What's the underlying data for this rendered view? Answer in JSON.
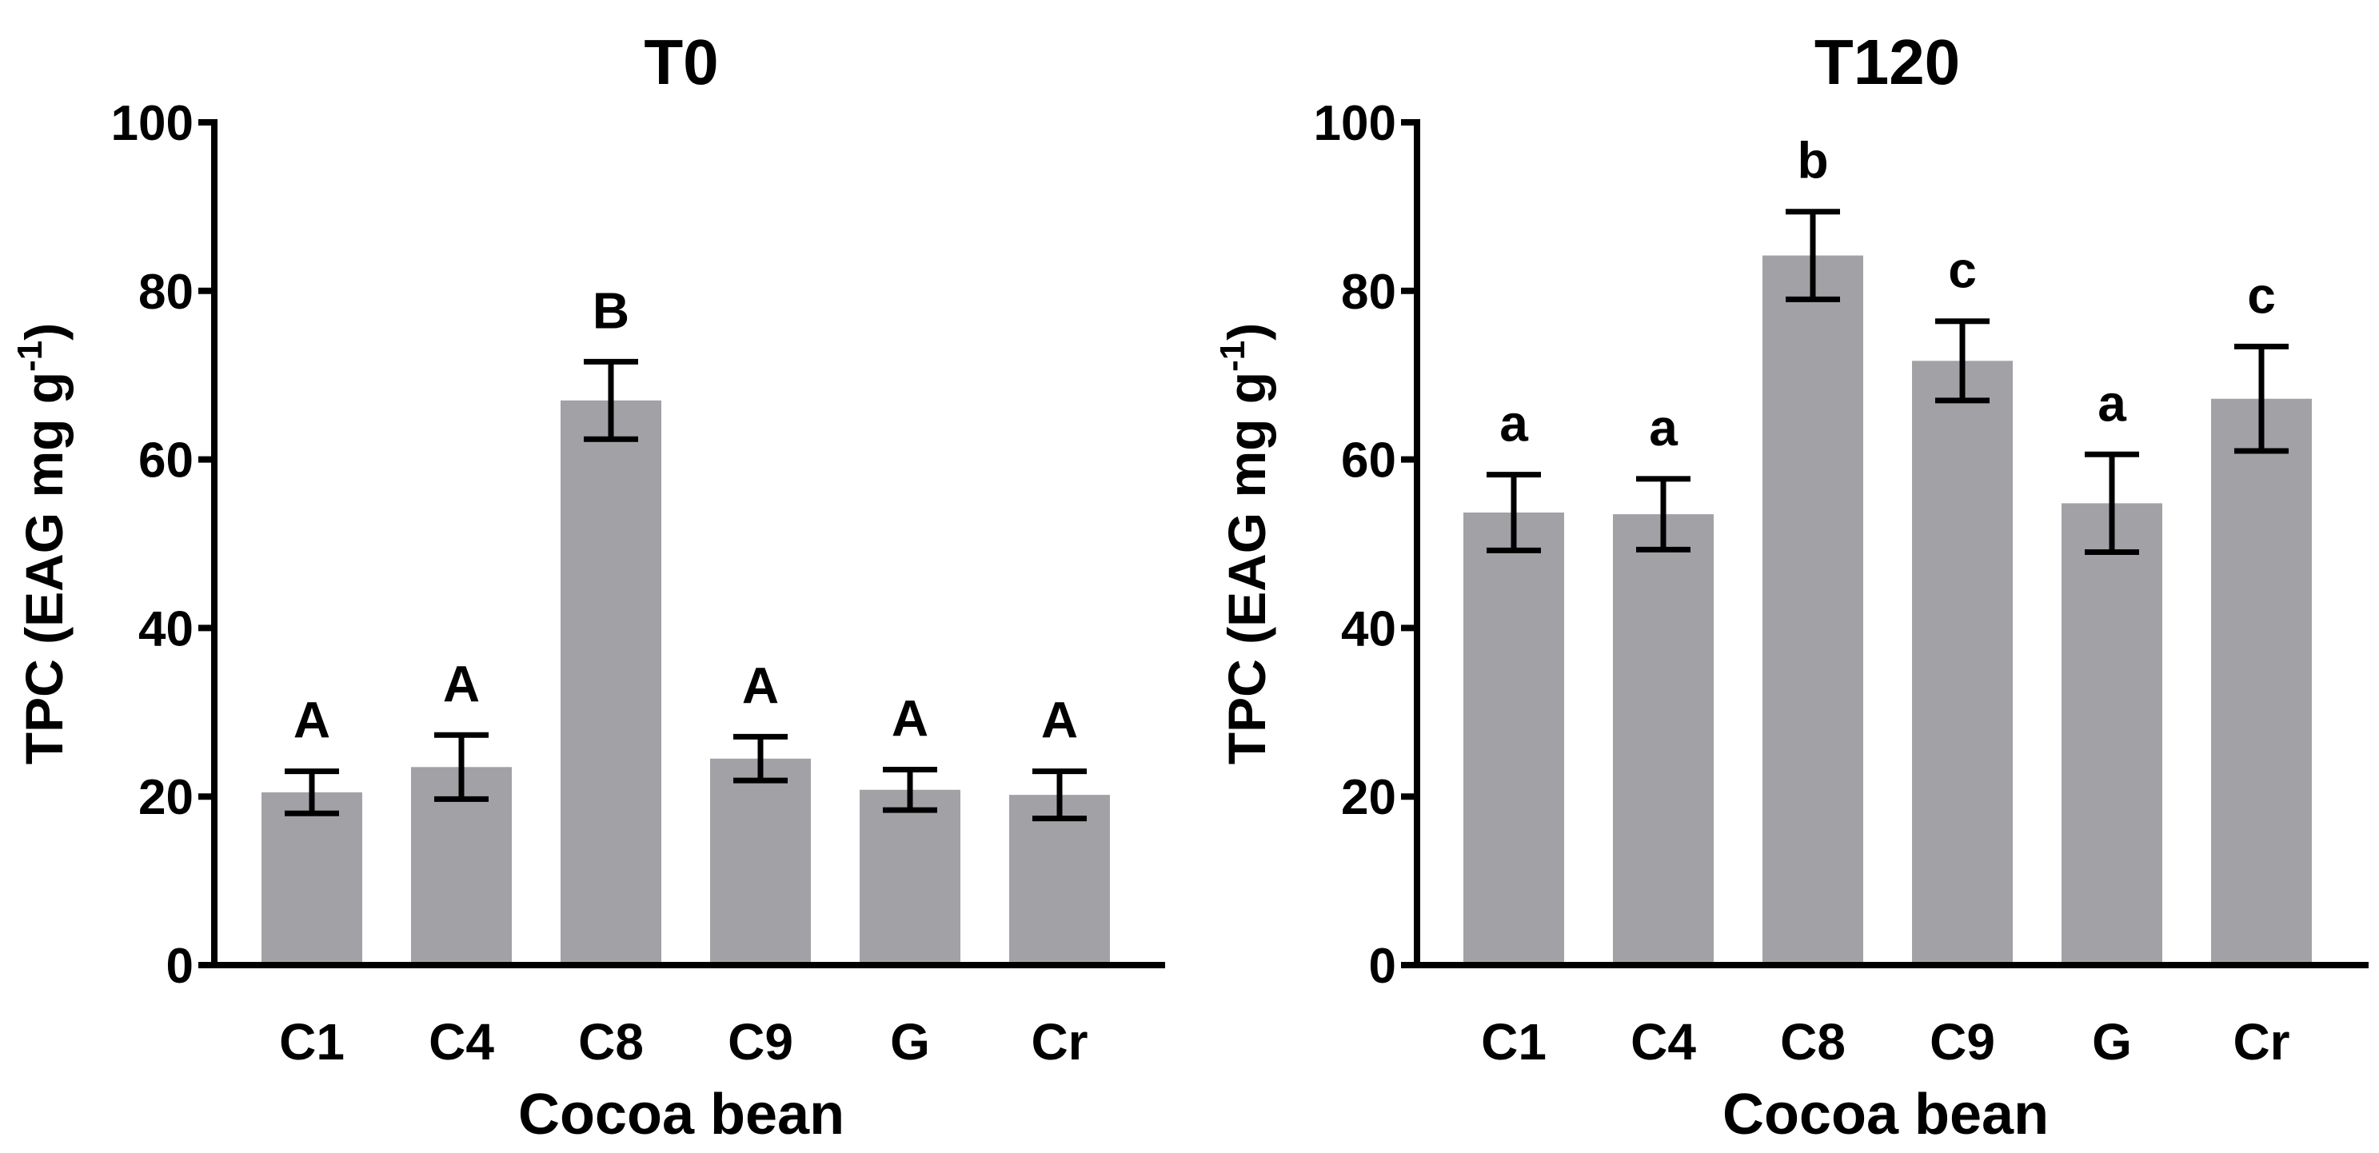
{
  "chart_data": [
    {
      "type": "bar",
      "title": "T0",
      "xlabel": "Cocoa bean",
      "ylabel": "TPC (EAG mg g",
      "ylabel_superscript": "-1",
      "ylabel_suffix": ")",
      "ylim": [
        0,
        100
      ],
      "yticks": [
        0,
        20,
        40,
        60,
        80,
        100
      ],
      "categories": [
        "C1",
        "C4",
        "C8",
        "C9",
        "G",
        "Cr"
      ],
      "values": [
        20.5,
        23.5,
        67,
        24.5,
        20.8,
        20.2
      ],
      "errors": [
        2.5,
        3.8,
        4.6,
        2.6,
        2.4,
        2.8
      ],
      "labels": [
        "A",
        "A",
        "B",
        "A",
        "A",
        "A"
      ],
      "bar_color": "#a2a1a6"
    },
    {
      "type": "bar",
      "title": "T120",
      "xlabel": "Cocoa bean",
      "ylabel": "TPC (EAG mg g",
      "ylabel_superscript": "-1",
      "ylabel_suffix": ")",
      "ylim": [
        0,
        100
      ],
      "yticks": [
        0,
        20,
        40,
        60,
        80,
        100
      ],
      "categories": [
        "C1",
        "C4",
        "C8",
        "C9",
        "G",
        "Cr"
      ],
      "values": [
        53.7,
        53.5,
        84.2,
        71.7,
        54.8,
        67.2
      ],
      "errors": [
        4.5,
        4.2,
        5.2,
        4.7,
        5.8,
        6.2
      ],
      "labels": [
        "a",
        "a",
        "b",
        "c",
        "a",
        "c"
      ],
      "bar_color": "#a2a1a6"
    }
  ]
}
